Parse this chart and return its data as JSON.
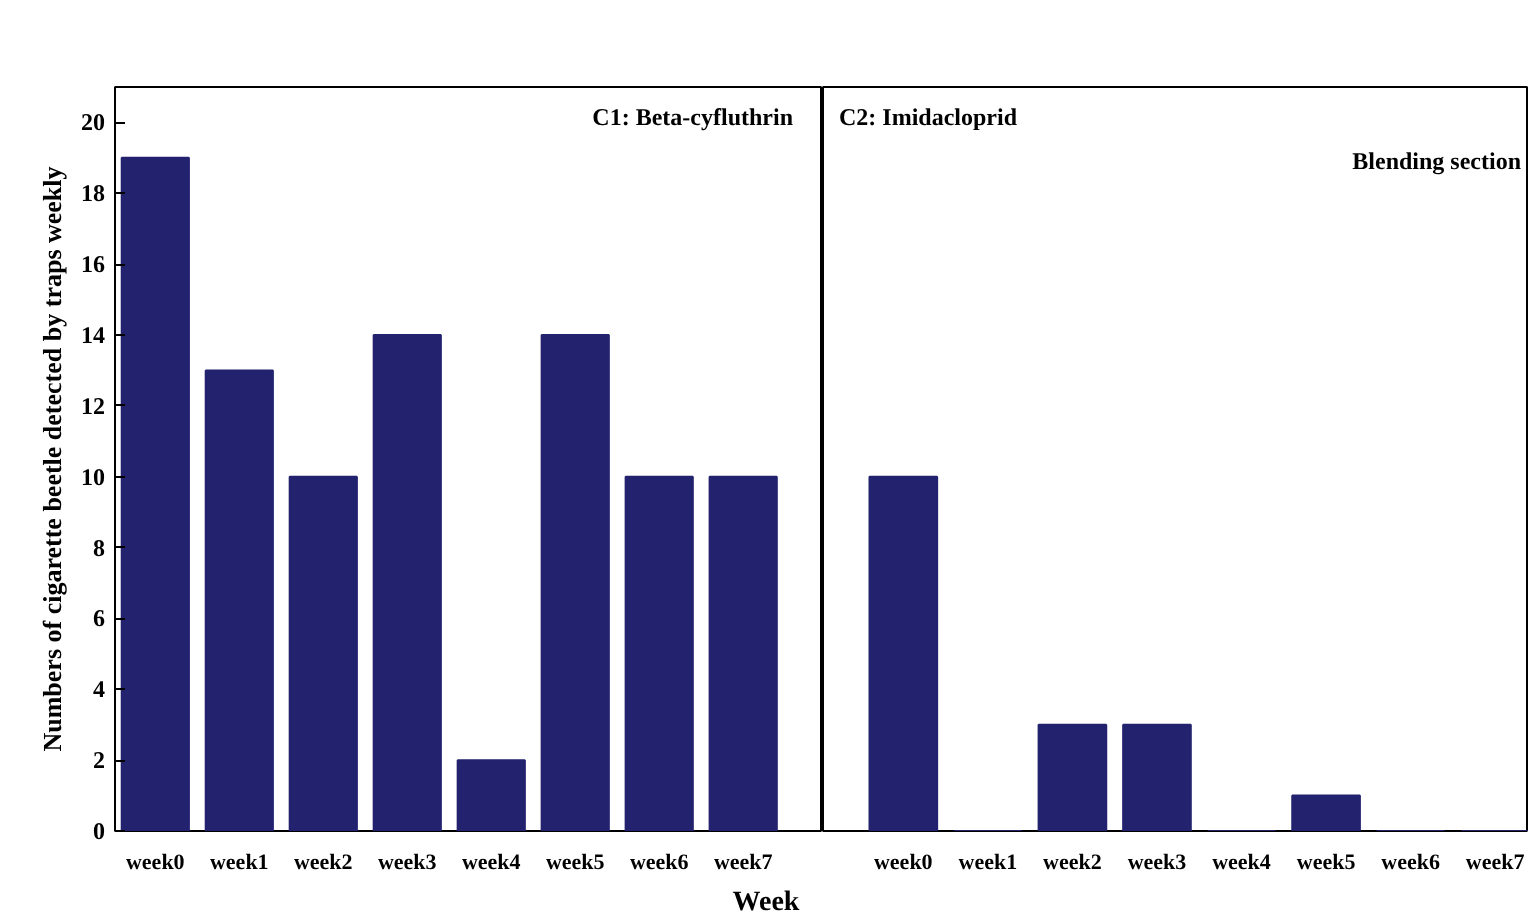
{
  "chart_data": [
    {
      "type": "bar",
      "categories": [
        "week0",
        "week1",
        "week2",
        "week3",
        "week4",
        "week5",
        "week6",
        "week7"
      ],
      "values": [
        19,
        13,
        10,
        14,
        2,
        14,
        10,
        10
      ],
      "color": "#22226e",
      "ylim": [
        0,
        21
      ],
      "yticks": [
        0,
        2,
        4,
        6,
        8,
        10,
        12,
        14,
        16,
        18,
        20
      ],
      "ylabel": "Numbers of cigarette beetle detected by traps weekly",
      "xlabel": "Week",
      "annotations": [
        "C1: Beta-cyfluthrin"
      ],
      "grid": false
    },
    {
      "type": "bar",
      "categories": [
        "week0",
        "week1",
        "week2",
        "week3",
        "week4",
        "week5",
        "week6",
        "week7"
      ],
      "values": [
        10,
        0,
        3,
        3,
        0,
        1,
        0,
        0
      ],
      "color": "#22226e",
      "ylim": [
        0,
        21
      ],
      "tick_labels": "x",
      "annotations": [
        "C2: Imidacloprid",
        "Blending section"
      ],
      "grid": false
    }
  ]
}
